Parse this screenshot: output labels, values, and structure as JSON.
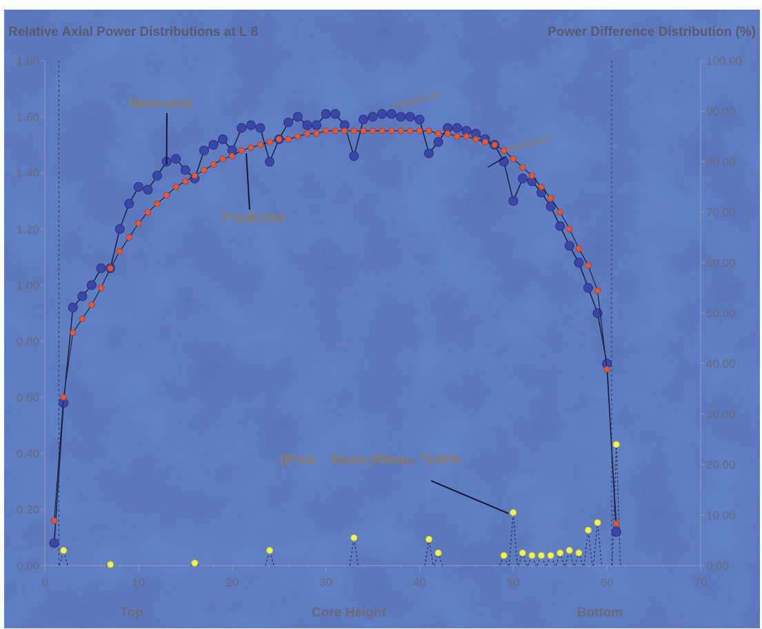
{
  "chart_data": {
    "type": "line",
    "title_left": "Relative Axial Power Distributions at L 8",
    "title_right": "Power Difference Distribution (%)",
    "xlabel": "Core Height",
    "x_region_labels": [
      "Top",
      "Bottom"
    ],
    "xlim": [
      0,
      70
    ],
    "ylim_left": [
      0,
      1.8
    ],
    "ylim_right": [
      0,
      100
    ],
    "x_ticks": [
      "0",
      "10",
      "20",
      "30",
      "40",
      "50",
      "60",
      "70"
    ],
    "y_left_ticks": [
      "0.00",
      "0.20",
      "0.40",
      "0.60",
      "0.80",
      "1.00",
      "1.20",
      "1.40",
      "1.60",
      "1.80"
    ],
    "y_right_ticks": [
      "0.00",
      "10.00",
      "20.00",
      "30.00",
      "40.00",
      "50.00",
      "60.00",
      "70.00",
      "80.00",
      "90.00",
      "100.00"
    ],
    "annotations": {
      "measured_big": "Measured",
      "predicted_big": "Predicted",
      "measured_small": "measured",
      "predicted_small": "predicted",
      "difference": "(Pred. - Meas.)/Meas. *100%"
    },
    "colors": {
      "background": "#5670b6",
      "measured": "#3a46a8",
      "predicted": "#e05a3a",
      "difference": "#f0f060",
      "line": "#1e2440"
    },
    "series": [
      {
        "name": "Measured",
        "axis": "left",
        "x": [
          1,
          2,
          3,
          4,
          5,
          6,
          7,
          8,
          9,
          10,
          11,
          12,
          13,
          14,
          15,
          16,
          17,
          18,
          19,
          20,
          21,
          22,
          23,
          24,
          25,
          26,
          27,
          28,
          29,
          30,
          31,
          32,
          33,
          34,
          35,
          36,
          37,
          38,
          39,
          40,
          41,
          42,
          43,
          44,
          45,
          46,
          47,
          48,
          49,
          50,
          51,
          52,
          53,
          54,
          55,
          56,
          57,
          58,
          59,
          60,
          61
        ],
        "values": [
          0.08,
          0.58,
          0.92,
          0.96,
          1.0,
          1.06,
          1.06,
          1.2,
          1.29,
          1.35,
          1.34,
          1.39,
          1.44,
          1.45,
          1.41,
          1.38,
          1.48,
          1.5,
          1.52,
          1.48,
          1.56,
          1.57,
          1.56,
          1.44,
          1.52,
          1.58,
          1.6,
          1.57,
          1.57,
          1.61,
          1.61,
          1.57,
          1.46,
          1.59,
          1.6,
          1.61,
          1.61,
          1.6,
          1.6,
          1.59,
          1.47,
          1.51,
          1.56,
          1.56,
          1.55,
          1.54,
          1.52,
          1.5,
          1.44,
          1.3,
          1.38,
          1.37,
          1.33,
          1.28,
          1.21,
          1.14,
          1.08,
          0.99,
          0.9,
          0.72,
          0.12
        ]
      },
      {
        "name": "Predicted",
        "axis": "left",
        "x": [
          1,
          2,
          3,
          4,
          5,
          6,
          7,
          8,
          9,
          10,
          11,
          12,
          13,
          14,
          15,
          16,
          17,
          18,
          19,
          20,
          21,
          22,
          23,
          24,
          25,
          26,
          27,
          28,
          29,
          30,
          31,
          32,
          33,
          34,
          35,
          36,
          37,
          38,
          39,
          40,
          41,
          42,
          43,
          44,
          45,
          46,
          47,
          48,
          49,
          50,
          51,
          52,
          53,
          54,
          55,
          56,
          57,
          58,
          59,
          60,
          61
        ],
        "values": [
          0.16,
          0.6,
          0.83,
          0.88,
          0.93,
          0.99,
          1.06,
          1.12,
          1.17,
          1.22,
          1.26,
          1.29,
          1.32,
          1.35,
          1.37,
          1.39,
          1.41,
          1.43,
          1.45,
          1.46,
          1.48,
          1.49,
          1.5,
          1.51,
          1.52,
          1.52,
          1.53,
          1.54,
          1.54,
          1.55,
          1.55,
          1.55,
          1.55,
          1.55,
          1.55,
          1.55,
          1.55,
          1.55,
          1.55,
          1.55,
          1.55,
          1.54,
          1.54,
          1.53,
          1.53,
          1.52,
          1.51,
          1.5,
          1.48,
          1.45,
          1.42,
          1.39,
          1.35,
          1.31,
          1.26,
          1.2,
          1.13,
          1.07,
          0.98,
          0.7,
          0.15
        ]
      },
      {
        "name": "Difference",
        "axis": "right",
        "x": [
          2,
          7,
          16,
          24,
          33,
          41,
          42,
          49,
          50,
          51,
          52,
          53,
          54,
          55,
          56,
          57,
          58,
          59,
          61
        ],
        "values": [
          3,
          0.2,
          0.5,
          3,
          5.5,
          5.2,
          2.5,
          2,
          10.5,
          2.5,
          2,
          2,
          2,
          2.5,
          3,
          2.5,
          7,
          8.5,
          24
        ]
      }
    ]
  }
}
